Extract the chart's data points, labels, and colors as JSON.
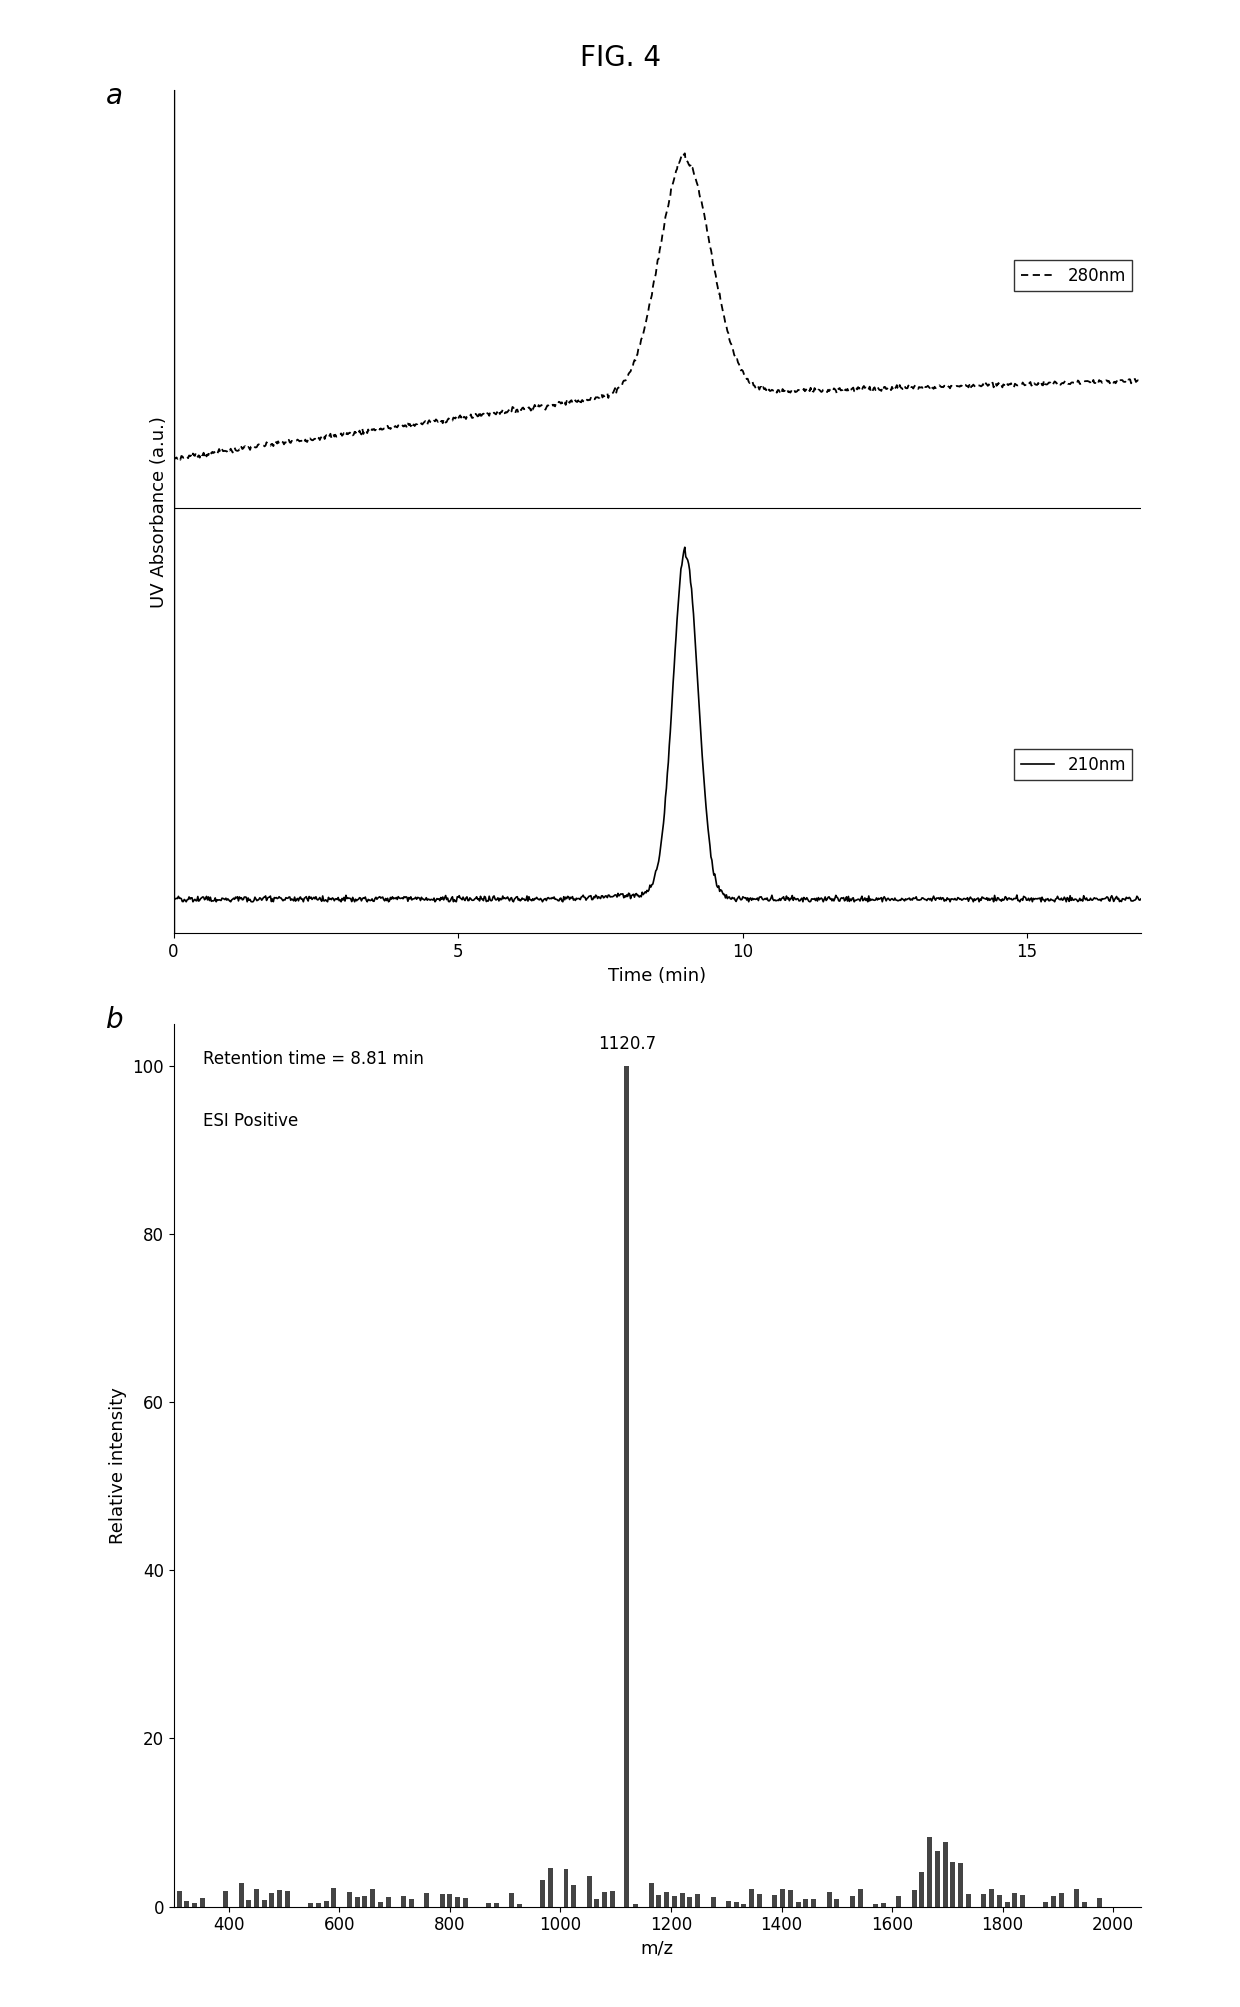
{
  "title": "FIG. 4",
  "panel_a_label": "a",
  "panel_b_label": "b",
  "ylabel_a": "UV Absorbance (a.u.)",
  "xlabel_a": "Time (min)",
  "ylabel_b": "Relative intensity",
  "xlabel_b": "m/z",
  "annotation_retention": "Retention time = 8.81 min",
  "annotation_esi": "ESI Positive",
  "annotation_peak": "1120.7",
  "xlim_a": [
    0,
    17
  ],
  "xticks_a": [
    0,
    5,
    10,
    15
  ],
  "xlim_b": [
    300,
    2050
  ],
  "xticks_b": [
    400,
    600,
    800,
    1000,
    1200,
    1400,
    1600,
    1800,
    2000
  ],
  "ylim_b": [
    0,
    105
  ],
  "yticks_b": [
    0,
    20,
    40,
    60,
    80,
    100
  ],
  "background_color": "#ffffff",
  "line_color": "#000000",
  "bar_color": "#444444",
  "title_fontsize": 20,
  "label_fontsize": 13,
  "tick_fontsize": 12,
  "panel_label_fontsize": 20
}
